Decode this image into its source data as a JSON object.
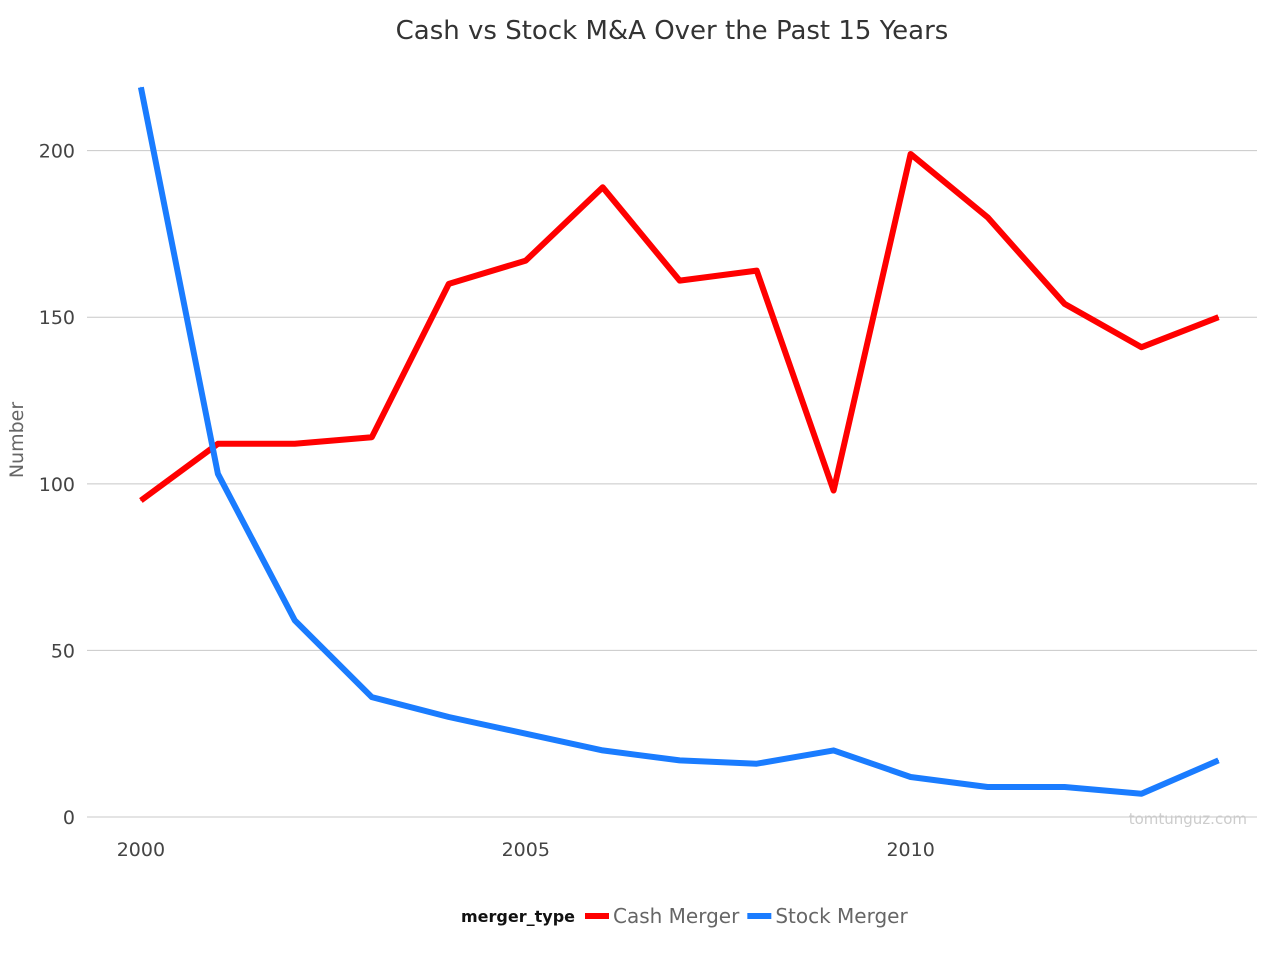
{
  "chart_data": {
    "type": "line",
    "title": "Cash vs Stock M&A Over the Past 15 Years",
    "xlabel": "",
    "ylabel": "Number",
    "xlim": [
      1999.3,
      2014.5
    ],
    "ylim": [
      0,
      220
    ],
    "x_ticks": [
      2000,
      2005,
      2010
    ],
    "y_ticks": [
      0,
      50,
      100,
      150,
      200
    ],
    "grid": true,
    "legend": {
      "title": "merger_type",
      "placement": "bottom"
    },
    "x": [
      2000,
      2001,
      2002,
      2003,
      2004,
      2005,
      2006,
      2007,
      2008,
      2009,
      2010,
      2011,
      2012,
      2013,
      2014
    ],
    "series": [
      {
        "name": "Cash Merger",
        "color": "#ff0000",
        "values": [
          95,
          112,
          112,
          114,
          160,
          167,
          189,
          161,
          164,
          98,
          199,
          180,
          154,
          141,
          150
        ]
      },
      {
        "name": "Stock Merger",
        "color": "#1a7cff",
        "values": [
          219,
          103,
          59,
          36,
          30,
          25,
          20,
          17,
          16,
          20,
          12,
          9,
          9,
          7,
          17
        ]
      }
    ],
    "watermark": "tomtunguz.com"
  }
}
